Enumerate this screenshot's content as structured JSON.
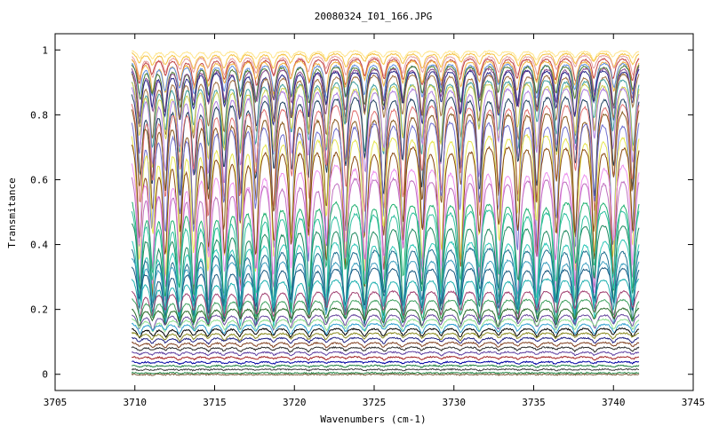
{
  "chart_data": {
    "type": "line",
    "title": "20080324_I01_166.JPG",
    "xlabel": "Wavenumbers (cm-1)",
    "ylabel": "Transmitance",
    "xlim": [
      3705,
      3745
    ],
    "ylim": [
      -0.05,
      1.05
    ],
    "x_ticks": [
      3705,
      3710,
      3715,
      3720,
      3725,
      3730,
      3735,
      3740,
      3745
    ],
    "x_tick_labels": [
      "3705",
      "3710",
      "3715",
      "3720",
      "3725",
      "3730",
      "3735",
      "3740",
      "3745"
    ],
    "y_ticks": [
      0,
      0.2,
      0.4,
      0.6,
      0.8,
      1
    ],
    "y_tick_labels": [
      "0",
      "0.2",
      "0.4",
      "0.6",
      "0.8",
      "1"
    ],
    "grid": false,
    "legend": "none",
    "x_range_data": [
      3709.8,
      3741.6
    ],
    "absorption_lines_x": [
      3710.3,
      3711.1,
      3711.9,
      3712.8,
      3713.7,
      3714.6,
      3715.6,
      3716.6,
      3717.6,
      3718.7,
      3719.8,
      3720.9,
      3722.0,
      3723.2,
      3724.4,
      3725.6,
      3726.8,
      3728.0,
      3729.2,
      3730.4,
      3731.6,
      3732.8,
      3734.0,
      3735.2,
      3736.4,
      3737.6,
      3738.8,
      3740.0,
      3741.2
    ],
    "series": [
      {
        "baseline": 1.0,
        "depth": 0.03,
        "color": "#ffe58a"
      },
      {
        "baseline": 0.995,
        "depth": 0.05,
        "color": "#f5c242"
      },
      {
        "baseline": 0.99,
        "depth": 0.07,
        "color": "#e8a0a0"
      },
      {
        "baseline": 0.985,
        "depth": 0.09,
        "color": "#c04040"
      },
      {
        "baseline": 0.98,
        "depth": 0.11,
        "color": "#f0b040"
      },
      {
        "baseline": 0.975,
        "depth": 0.13,
        "color": "#6090e0"
      },
      {
        "baseline": 0.97,
        "depth": 0.15,
        "color": "#4a7a30"
      },
      {
        "baseline": 0.965,
        "depth": 0.17,
        "color": "#8a4a90"
      },
      {
        "baseline": 0.96,
        "depth": 0.19,
        "color": "#2a2a8a"
      },
      {
        "baseline": 0.95,
        "depth": 0.22,
        "color": "#a07040"
      },
      {
        "baseline": 0.94,
        "depth": 0.25,
        "color": "#40a0a0"
      },
      {
        "baseline": 0.93,
        "depth": 0.28,
        "color": "#d0d050"
      },
      {
        "baseline": 0.92,
        "depth": 0.31,
        "color": "#b080e0"
      },
      {
        "baseline": 0.9,
        "depth": 0.34,
        "color": "#204060"
      },
      {
        "baseline": 0.88,
        "depth": 0.38,
        "color": "#e07070"
      },
      {
        "baseline": 0.86,
        "depth": 0.42,
        "color": "#8a5a20"
      },
      {
        "baseline": 0.84,
        "depth": 0.46,
        "color": "#7070d0"
      },
      {
        "baseline": 0.8,
        "depth": 0.48,
        "color": "#e6e650"
      },
      {
        "baseline": 0.76,
        "depth": 0.5,
        "color": "#8a4a10"
      },
      {
        "baseline": 0.7,
        "depth": 0.48,
        "color": "#ee90ee"
      },
      {
        "baseline": 0.66,
        "depth": 0.45,
        "color": "#c070c0"
      },
      {
        "baseline": 0.58,
        "depth": 0.4,
        "color": "#20b070"
      },
      {
        "baseline": 0.55,
        "depth": 0.37,
        "color": "#30c0a0"
      },
      {
        "baseline": 0.5,
        "depth": 0.33,
        "color": "#208a60"
      },
      {
        "baseline": 0.45,
        "depth": 0.29,
        "color": "#30c8b8"
      },
      {
        "baseline": 0.42,
        "depth": 0.26,
        "color": "#207090"
      },
      {
        "baseline": 0.38,
        "depth": 0.22,
        "color": "#40a0c0"
      },
      {
        "baseline": 0.35,
        "depth": 0.18,
        "color": "#1a5a80"
      },
      {
        "baseline": 0.31,
        "depth": 0.14,
        "color": "#20b0b0"
      },
      {
        "baseline": 0.27,
        "depth": 0.1,
        "color": "#a04070"
      },
      {
        "baseline": 0.24,
        "depth": 0.08,
        "color": "#40a060"
      },
      {
        "baseline": 0.21,
        "depth": 0.06,
        "color": "#2a6a2a"
      },
      {
        "baseline": 0.19,
        "depth": 0.05,
        "color": "#6a4aa0"
      },
      {
        "baseline": 0.175,
        "depth": 0.04,
        "color": "#90e090"
      },
      {
        "baseline": 0.16,
        "depth": 0.035,
        "color": "#30a0d0"
      },
      {
        "baseline": 0.145,
        "depth": 0.03,
        "color": "#000000"
      },
      {
        "baseline": 0.13,
        "depth": 0.025,
        "color": "#8a8a20"
      },
      {
        "baseline": 0.115,
        "depth": 0.02,
        "color": "#202080"
      },
      {
        "baseline": 0.1,
        "depth": 0.018,
        "color": "#804020"
      },
      {
        "baseline": 0.085,
        "depth": 0.015,
        "color": "#2a2a2a"
      },
      {
        "baseline": 0.07,
        "depth": 0.012,
        "color": "#6040a0"
      },
      {
        "baseline": 0.055,
        "depth": 0.01,
        "color": "#a02020"
      },
      {
        "baseline": 0.04,
        "depth": 0.008,
        "color": "#0000a0"
      },
      {
        "baseline": 0.028,
        "depth": 0.006,
        "color": "#208040"
      },
      {
        "baseline": 0.016,
        "depth": 0.004,
        "color": "#404040"
      },
      {
        "baseline": 0.005,
        "depth": 0.003,
        "color": "#2a8a4a"
      },
      {
        "baseline": 0.0,
        "depth": 0.002,
        "color": "#806040"
      }
    ]
  }
}
